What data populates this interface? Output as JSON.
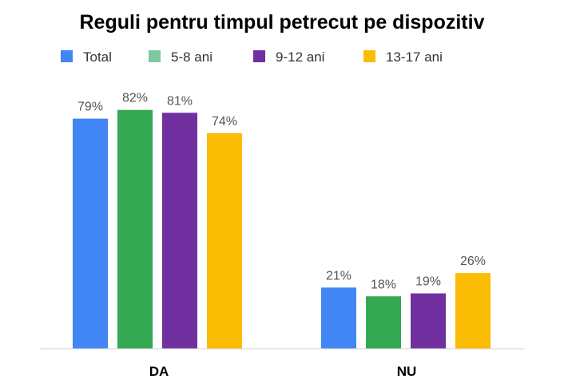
{
  "chart_data": {
    "type": "bar",
    "title": "Reguli pentru timpul petrecut pe dispozitiv",
    "categories": [
      "DA",
      "NU"
    ],
    "series": [
      {
        "name": "Total",
        "values": [
          79,
          21
        ],
        "labels": [
          "79%",
          "21%"
        ],
        "color": "#4285F4",
        "legend_color": "#4285F4"
      },
      {
        "name": "5-8 ani",
        "values": [
          82,
          18
        ],
        "labels": [
          "82%",
          "18%"
        ],
        "color": "#34A853",
        "legend_color": "#7DC9A0"
      },
      {
        "name": "9-12 ani",
        "values": [
          81,
          19
        ],
        "labels": [
          "81%",
          "19%"
        ],
        "color": "#7030A0",
        "legend_color": "#7030A0"
      },
      {
        "name": "13-17 ani",
        "values": [
          74,
          26
        ],
        "labels": [
          "74%",
          "26%"
        ],
        "color": "#FBBC04",
        "legend_color": "#FBBC04"
      }
    ],
    "ylim": [
      0,
      100
    ],
    "unit": "%",
    "xlabel": "",
    "ylabel": "",
    "grid": false,
    "legend_position": "top"
  }
}
